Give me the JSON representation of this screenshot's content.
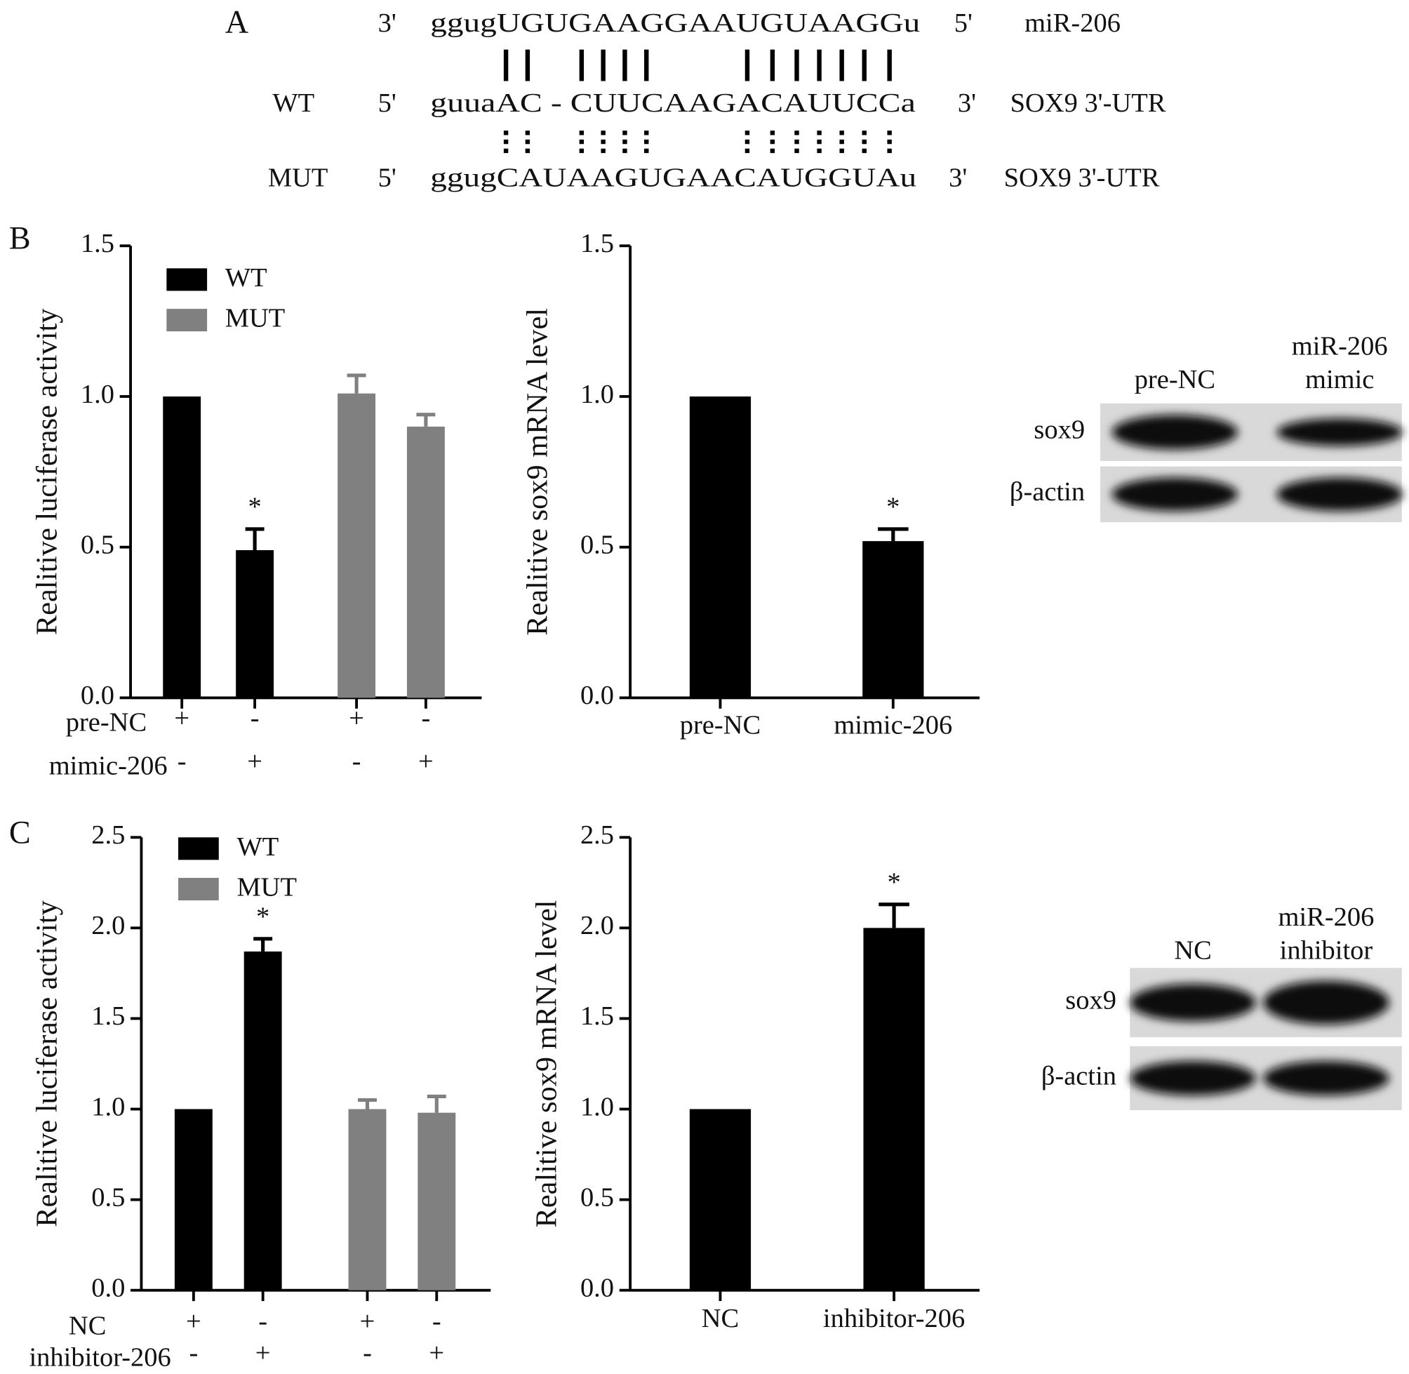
{
  "panel_labels": {
    "a": "A",
    "b": "B",
    "c": "C"
  },
  "sequence_alignment": {
    "rows": [
      {
        "left": "3'",
        "sequence": "ggugUGUGAAGGAAUGUAAGGu",
        "right": "5'",
        "label": "miR-206"
      },
      {
        "name": "WT",
        "left": "5'",
        "sequence": "guuaAC - CUUCAAGACAUUCCa",
        "right": "3'",
        "label": "SOX9 3'-UTR"
      },
      {
        "name": "MUT",
        "left": "5'",
        "sequence": "ggugCAUAAGUGAACAUGGUAu",
        "right": "3'",
        "label": "SOX9 3'-UTR"
      }
    ]
  },
  "blots": [
    {
      "lanes": [
        [
          "pre-NC"
        ],
        [
          "miR-206",
          "mimic"
        ]
      ],
      "rows": [
        "sox9",
        "β-actin"
      ]
    },
    {
      "lanes": [
        [
          "NC"
        ],
        [
          "miR-206",
          "inhibitor"
        ]
      ],
      "rows": [
        "sox9",
        "β-actin"
      ]
    }
  ],
  "chart_data": [
    {
      "type": "bar",
      "ylabel": "Realitive luciferase activity",
      "ylim": [
        0,
        1.5
      ],
      "yticks": [
        {
          "value": 0,
          "label": "0.0"
        },
        0.5,
        {
          "value": 1,
          "label": "1.0"
        },
        1.5
      ],
      "legend": true,
      "series": [
        {
          "name": "WT",
          "color": "#000000",
          "values": [
            1.0,
            0.49,
            null,
            null
          ],
          "errors": [
            null,
            0.07,
            null,
            null
          ],
          "annotations": [
            null,
            "*",
            null,
            null
          ]
        },
        {
          "name": "MUT",
          "color": "#808080",
          "values": [
            null,
            null,
            1.01,
            0.9
          ],
          "errors": [
            null,
            null,
            0.06,
            0.04
          ],
          "annotations": [
            null,
            null,
            null,
            null
          ]
        }
      ],
      "rows": [
        {
          "label": "pre-NC",
          "values": [
            "+",
            "-",
            "+",
            "-"
          ]
        },
        {
          "label": "mimic-206",
          "values": [
            "-",
            "+",
            "-",
            "+"
          ]
        }
      ]
    },
    {
      "type": "bar",
      "ylabel": "Realitive sox9 mRNA level",
      "ylim": [
        0,
        1.5
      ],
      "yticks": [
        {
          "value": 0,
          "label": "0.0"
        },
        0.5,
        {
          "value": 1,
          "label": "1.0"
        },
        1.5
      ],
      "categories": [
        "pre-NC",
        "mimic-206"
      ],
      "values": [
        1.0,
        0.52
      ],
      "errors": [
        null,
        0.04
      ],
      "annotations": [
        null,
        "*"
      ],
      "color": "#000000"
    },
    {
      "type": "bar",
      "ylabel": "Realitive luciferase activity",
      "ylim": [
        0,
        2.5
      ],
      "yticks": [
        {
          "value": 0,
          "label": "0.0"
        },
        0.5,
        {
          "value": 1,
          "label": "1.0"
        },
        1.5,
        {
          "value": 2,
          "label": "2.0"
        },
        2.5
      ],
      "legend": true,
      "series": [
        {
          "name": "WT",
          "color": "#000000",
          "values": [
            1.0,
            1.87,
            null,
            null
          ],
          "errors": [
            null,
            0.07,
            null,
            null
          ],
          "annotations": [
            null,
            "*",
            null,
            null
          ]
        },
        {
          "name": "MUT",
          "color": "#808080",
          "values": [
            null,
            null,
            1.0,
            0.98
          ],
          "errors": [
            null,
            null,
            0.05,
            0.09
          ],
          "annotations": [
            null,
            null,
            null,
            null
          ]
        }
      ],
      "rows": [
        {
          "label": "NC",
          "values": [
            "+",
            "-",
            "+",
            "-"
          ]
        },
        {
          "label": "inhibitor-206",
          "values": [
            "-",
            "+",
            "-",
            "+"
          ]
        }
      ]
    },
    {
      "type": "bar",
      "ylabel": "Realitive sox9 mRNA level",
      "ylim": [
        0,
        2.5
      ],
      "yticks": [
        {
          "value": 0,
          "label": "0.0"
        },
        0.5,
        {
          "value": 1,
          "label": "1.0"
        },
        1.5,
        {
          "value": 2,
          "label": "2.0"
        },
        2.5
      ],
      "categories": [
        "NC",
        "inhibitor-206"
      ],
      "values": [
        1.0,
        2.0
      ],
      "errors": [
        null,
        0.13
      ],
      "annotations": [
        null,
        "*"
      ],
      "color": "#000000"
    }
  ]
}
